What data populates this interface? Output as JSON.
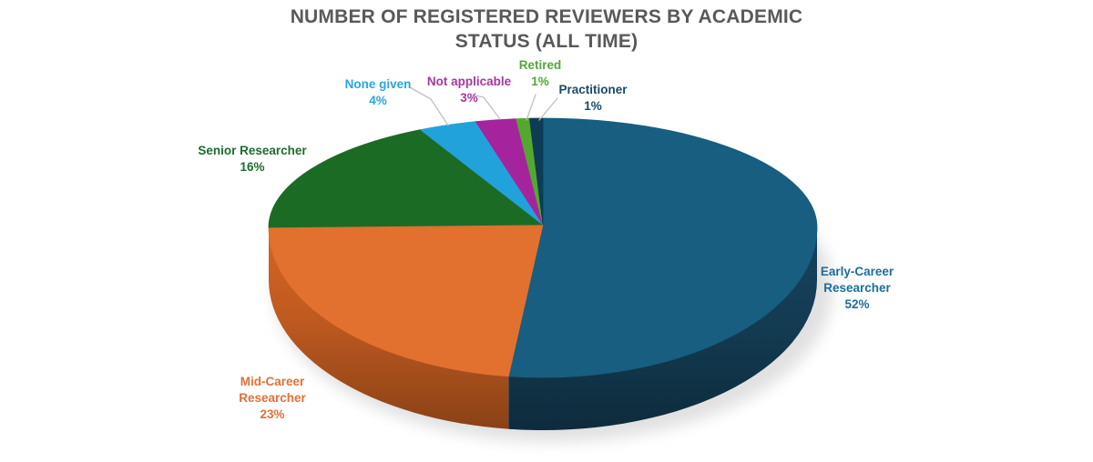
{
  "page": {
    "background": "#ffffff"
  },
  "chart_data": {
    "type": "pie",
    "style": "3d",
    "title": "NUMBER OF REGISTERED REVIEWERS BY ACADEMIC STATUS (ALL TIME)",
    "title_color": "#595959",
    "legend_position": "none",
    "labels_position": "outside-callouts",
    "start_angle_deg": 0,
    "direction": "clockwise",
    "leader_line_color": "#c0c0c0",
    "shadow_color": "#d9d9d9",
    "slices": [
      {
        "label": "Early-Career Researcher",
        "value": 52,
        "pct_label": "52%",
        "color": "#175e80",
        "side_color": "#133c53",
        "label_color": "#1e6d99"
      },
      {
        "label": "Mid-Career Researcher",
        "value": 23,
        "pct_label": "23%",
        "color": "#e2702e",
        "side_color": "#bf5a20",
        "label_color": "#e2703a"
      },
      {
        "label": "Senior Researcher",
        "value": 16,
        "pct_label": "16%",
        "color": "#1b6b25",
        "label_color": "#1e6b2d"
      },
      {
        "label": "None given",
        "value": 4,
        "pct_label": "4%",
        "color": "#22a2db",
        "label_color": "#29a6dd"
      },
      {
        "label": "Not applicable",
        "value": 3,
        "pct_label": "3%",
        "color": "#a5249e",
        "label_color": "#a5389d"
      },
      {
        "label": "Retired",
        "value": 1,
        "pct_label": "1%",
        "color": "#54a82f",
        "label_color": "#55a638"
      },
      {
        "label": "Practitioner",
        "value": 1,
        "pct_label": "1%",
        "color": "#0e3c55",
        "label_color": "#1c4a63"
      }
    ]
  }
}
